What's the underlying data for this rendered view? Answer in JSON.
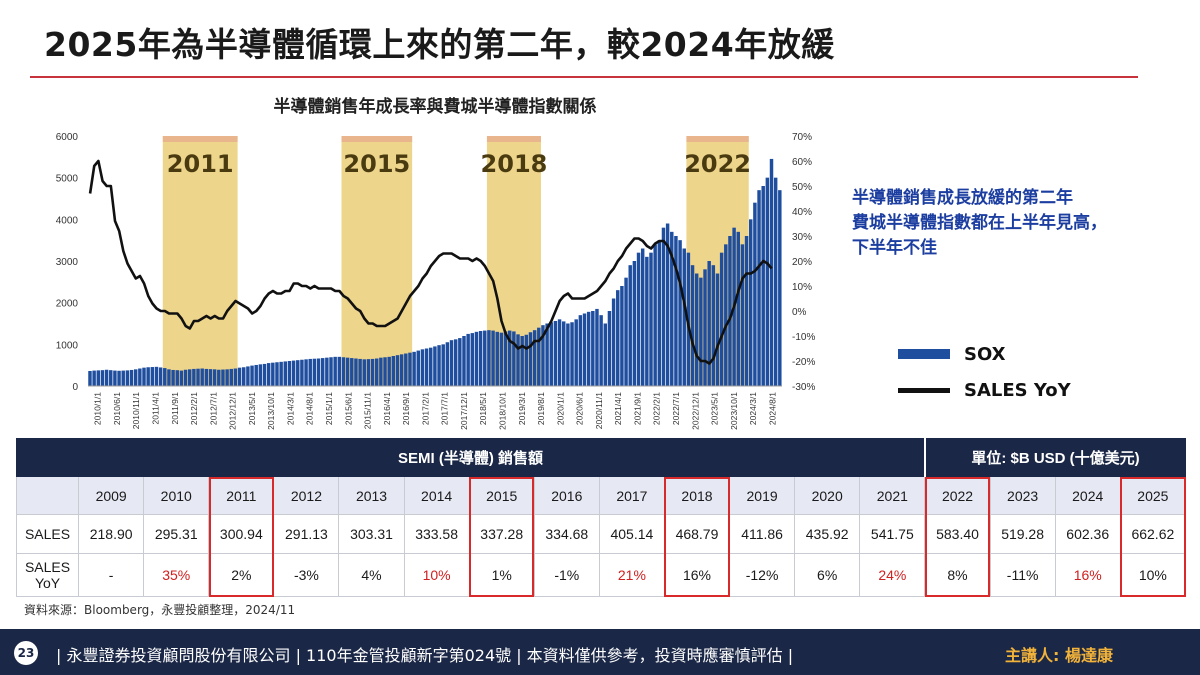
{
  "page": {
    "title": "2025年為半導體循環上來的第二年，較2024年放緩",
    "notes": [
      "半導體銷售成長放緩的第二年",
      "費城半導體指數都在上半年見高，",
      "下半年不佳"
    ],
    "source": "資料來源：Bloomberg，永豐投顧整理，2024/11",
    "page_number": "23",
    "footer_text": "| 永豐證券投資顧問股份有限公司 | 110年金管投顧新字第024號 | 本資料僅供參考，投資時應審慎評估 |",
    "speaker": "主講人: 楊達康"
  },
  "colors": {
    "accent_red": "#c8323c",
    "navy": "#1b2746",
    "sox_bar": "#1f4e9e",
    "highlight_band": "#e8c766",
    "notes_blue": "#1c3ea0",
    "speaker_gold": "#f2b33a"
  },
  "chart_data": {
    "type": "bar",
    "title": "半導體銷售年成長率與費城半導體指數關係",
    "left_axis": {
      "ticks": [
        0,
        1000,
        2000,
        3000,
        4000,
        5000,
        6000
      ],
      "range": [
        0,
        6000
      ]
    },
    "right_axis": {
      "ticks": [
        "-30%",
        "-20%",
        "-10%",
        "0%",
        "10%",
        "20%",
        "30%",
        "40%",
        "50%",
        "60%",
        "70%"
      ],
      "range": [
        -30,
        70
      ]
    },
    "x_tick_labels": [
      "2010/1/1",
      "2010/6/1",
      "2010/11/1",
      "2011/4/1",
      "2011/9/1",
      "2012/2/1",
      "2012/7/1",
      "2012/12/1",
      "2013/5/1",
      "2013/10/1",
      "2014/3/1",
      "2014/8/1",
      "2015/1/1",
      "2015/6/1",
      "2015/11/1",
      "2016/4/1",
      "2016/9/1",
      "2017/2/1",
      "2017/7/1",
      "2017/12/1",
      "2018/5/1",
      "2018/10/1",
      "2019/3/1",
      "2019/8/1",
      "2020/1/1",
      "2020/6/1",
      "2020/11/1",
      "2021/4/1",
      "2021/9/1",
      "2022/2/1",
      "2022/7/1",
      "2022/12/1",
      "2023/5/1",
      "2023/10/1",
      "2024/3/1",
      "2024/8/1"
    ],
    "highlights": [
      {
        "label": "2011",
        "from": "2011/7",
        "to": "2012/12"
      },
      {
        "label": "2015",
        "from": "2015/2",
        "to": "2016/6"
      },
      {
        "label": "2018",
        "from": "2018/1",
        "to": "2019/1"
      },
      {
        "label": "2022",
        "from": "2022/1",
        "to": "2023/3"
      }
    ],
    "series": [
      {
        "name": "SOX",
        "axis": "left",
        "type": "bar",
        "start": "2010/1",
        "interval": "month",
        "values": [
          360,
          370,
          375,
          380,
          390,
          380,
          370,
          365,
          370,
          375,
          385,
          400,
          420,
          440,
          450,
          455,
          460,
          445,
          430,
          400,
          385,
          380,
          370,
          390,
          400,
          410,
          415,
          420,
          410,
          405,
          400,
          390,
          395,
          400,
          410,
          420,
          440,
          450,
          470,
          490,
          505,
          520,
          530,
          550,
          560,
          570,
          580,
          590,
          600,
          610,
          620,
          630,
          640,
          650,
          655,
          660,
          670,
          680,
          690,
          700,
          700,
          690,
          680,
          670,
          660,
          650,
          640,
          645,
          650,
          660,
          680,
          690,
          700,
          720,
          740,
          760,
          780,
          800,
          820,
          850,
          880,
          900,
          920,
          950,
          980,
          1000,
          1050,
          1100,
          1120,
          1150,
          1200,
          1250,
          1270,
          1300,
          1320,
          1330,
          1340,
          1330,
          1300,
          1280,
          1310,
          1330,
          1310,
          1240,
          1200,
          1230,
          1290,
          1340,
          1400,
          1460,
          1500,
          1530,
          1560,
          1600,
          1550,
          1500,
          1530,
          1600,
          1700,
          1740,
          1780,
          1800,
          1850,
          1700,
          1500,
          1800,
          2100,
          2300,
          2400,
          2600,
          2900,
          3000,
          3200,
          3300,
          3100,
          3200,
          3400,
          3500,
          3800,
          3900,
          3700,
          3600,
          3500,
          3300,
          3200,
          2900,
          2700,
          2600,
          2800,
          3000,
          2900,
          2700,
          3200,
          3400,
          3600,
          3800,
          3700,
          3400,
          3600,
          4000,
          4400,
          4700,
          4800,
          5000,
          5450,
          5000,
          4700
        ]
      },
      {
        "name": "SALES YoY",
        "axis": "right",
        "type": "line",
        "start": "2010/1",
        "interval": "month",
        "values": [
          47,
          58,
          60,
          52,
          50,
          50,
          36,
          32,
          24,
          19,
          16,
          13,
          14,
          11,
          6,
          3,
          1,
          0,
          0,
          -1,
          -1,
          -1,
          -3,
          -6,
          -7,
          -4,
          -4,
          -3,
          -2,
          -3,
          -2,
          -3,
          -3,
          0,
          2,
          4,
          3,
          2,
          1,
          -1,
          0,
          2,
          5,
          7,
          8,
          7,
          7,
          8,
          8,
          11,
          11,
          10,
          10,
          9,
          10,
          9,
          9,
          9,
          9,
          8,
          8,
          6,
          5,
          3,
          1,
          0,
          -3,
          -5,
          -5,
          -6,
          -6,
          -6,
          -5,
          -4,
          -3,
          0,
          3,
          6,
          8,
          10,
          13,
          15,
          18,
          20,
          22,
          23,
          23,
          23,
          22,
          21,
          21,
          21,
          20,
          21,
          20,
          18,
          15,
          12,
          5,
          -4,
          -9,
          -12,
          -13,
          -15,
          -14,
          -15,
          -14,
          -12,
          -12,
          -10,
          -7,
          -4,
          0,
          4,
          6,
          7,
          5,
          5,
          5,
          5,
          6,
          7,
          8,
          10,
          12,
          15,
          17,
          20,
          22,
          25,
          27,
          29,
          29,
          28,
          26,
          25,
          27,
          28,
          28,
          26,
          22,
          17,
          11,
          3,
          -6,
          -13,
          -18,
          -20,
          -20,
          -21,
          -19,
          -14,
          -10,
          -6,
          -3,
          2,
          8,
          13,
          15,
          15,
          16,
          18,
          20,
          19,
          17
        ]
      }
    ]
  },
  "table": {
    "header_title": "SEMI (半導體) 銷售額",
    "header_unit": "單位: $B USD (十億美元)",
    "years": [
      "2009",
      "2010",
      "2011",
      "2012",
      "2013",
      "2014",
      "2015",
      "2016",
      "2017",
      "2018",
      "2019",
      "2020",
      "2021",
      "2022",
      "2023",
      "2024",
      "2025"
    ],
    "sales_label": "SALES",
    "yoy_label_line1": "SALES",
    "yoy_label_line2": "YoY",
    "sales": [
      "218.90",
      "295.31",
      "300.94",
      "291.13",
      "303.31",
      "333.58",
      "337.28",
      "334.68",
      "405.14",
      "468.79",
      "411.86",
      "435.92",
      "541.75",
      "583.40",
      "519.28",
      "602.36",
      "662.62"
    ],
    "yoy": [
      "-",
      "35%",
      "2%",
      "-3%",
      "4%",
      "10%",
      "1%",
      "-1%",
      "21%",
      "16%",
      "-12%",
      "6%",
      "24%",
      "8%",
      "-11%",
      "16%",
      "10%"
    ],
    "yoy_red": [
      false,
      true,
      false,
      false,
      false,
      true,
      false,
      false,
      true,
      false,
      false,
      false,
      true,
      false,
      false,
      true,
      false
    ],
    "highlighted_years": [
      "2011",
      "2015",
      "2018",
      "2022",
      "2025"
    ]
  },
  "legend": {
    "sox": "SOX",
    "sales_yoy": "SALES YoY"
  }
}
